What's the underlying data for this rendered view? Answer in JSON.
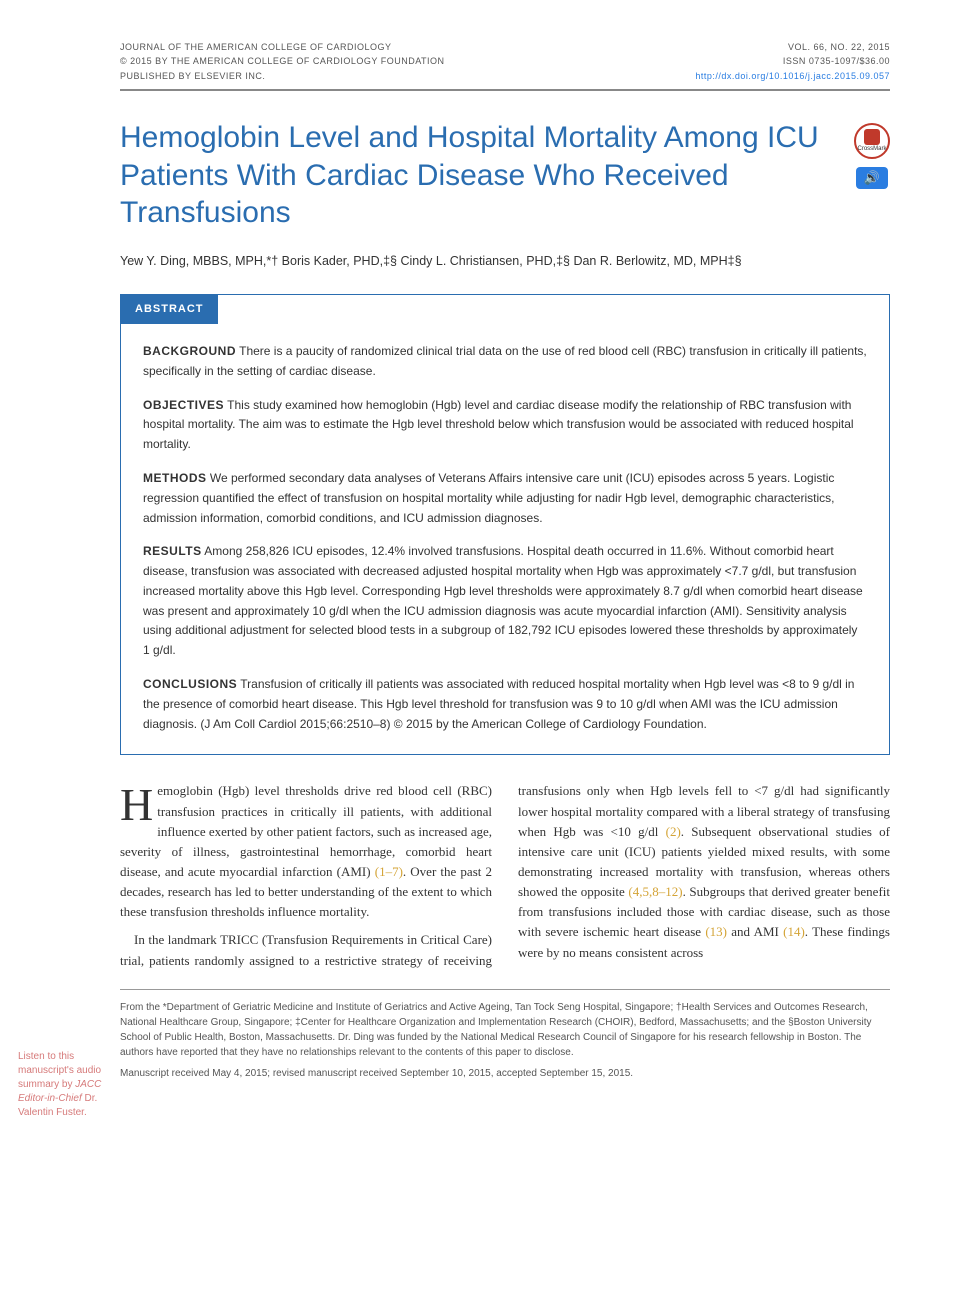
{
  "meta": {
    "journal_line": "JOURNAL OF THE AMERICAN COLLEGE OF CARDIOLOGY",
    "copyright_line": "© 2015 BY THE AMERICAN COLLEGE OF CARDIOLOGY FOUNDATION",
    "publisher_line": "PUBLISHED BY ELSEVIER INC.",
    "vol_line": "VOL. 66, NO. 22, 2015",
    "issn_line": "ISSN 0735-1097/$36.00",
    "doi": "http://dx.doi.org/10.1016/j.jacc.2015.09.057"
  },
  "title": "Hemoglobin Level and Hospital Mortality Among ICU Patients With Cardiac Disease Who Received Transfusions",
  "badges": {
    "crossmark_label": "CrossMark",
    "audio_glyph": "🔊"
  },
  "authors_html": "Yew Y. Ding, MBBS, MPH,*† Boris Kader, PHD,‡§ Cindy L. Christiansen, PHD,‡§ Dan R. Berlowitz, MD, MPH‡§",
  "abstract": {
    "heading": "ABSTRACT",
    "background_label": "BACKGROUND",
    "background": "There is a paucity of randomized clinical trial data on the use of red blood cell (RBC) transfusion in critically ill patients, specifically in the setting of cardiac disease.",
    "objectives_label": "OBJECTIVES",
    "objectives": "This study examined how hemoglobin (Hgb) level and cardiac disease modify the relationship of RBC transfusion with hospital mortality. The aim was to estimate the Hgb level threshold below which transfusion would be associated with reduced hospital mortality.",
    "methods_label": "METHODS",
    "methods": "We performed secondary data analyses of Veterans Affairs intensive care unit (ICU) episodes across 5 years. Logistic regression quantified the effect of transfusion on hospital mortality while adjusting for nadir Hgb level, demographic characteristics, admission information, comorbid conditions, and ICU admission diagnoses.",
    "results_label": "RESULTS",
    "results": "Among 258,826 ICU episodes, 12.4% involved transfusions. Hospital death occurred in 11.6%. Without comorbid heart disease, transfusion was associated with decreased adjusted hospital mortality when Hgb was approximately <7.7 g/dl, but transfusion increased mortality above this Hgb level. Corresponding Hgb level thresholds were approximately 8.7 g/dl when comorbid heart disease was present and approximately 10 g/dl when the ICU admission diagnosis was acute myocardial infarction (AMI). Sensitivity analysis using additional adjustment for selected blood tests in a subgroup of 182,792 ICU episodes lowered these thresholds by approximately 1 g/dl.",
    "conclusions_label": "CONCLUSIONS",
    "conclusions": "Transfusion of critically ill patients was associated with reduced hospital mortality when Hgb level was <8 to 9 g/dl in the presence of comorbid heart disease. This Hgb level threshold for transfusion was 9 to 10 g/dl when AMI was the ICU admission diagnosis. (J Am Coll Cardiol 2015;66:2510–8) © 2015 by the American College of Cardiology Foundation."
  },
  "body": {
    "p1_first": "H",
    "p1_rest": "emoglobin (Hgb) level thresholds drive red blood cell (RBC) transfusion practices in critically ill patients, with additional influence exerted by other patient factors, such as increased age, severity of illness, gastrointestinal hemorrhage, comorbid heart disease, and acute myocardial infarction (AMI) ",
    "p1_cite": "(1–7)",
    "p1_tail": ". Over the past 2 decades, research has led to better understanding of the extent to which these transfusion thresholds influence mortality.",
    "p2_head": "In the landmark TRICC (Transfusion Requirements in Critical Care) trial, patients randomly assigned to a ",
    "p2_cont": "restrictive strategy of receiving transfusions only when Hgb levels fell to <7 g/dl had significantly lower hospital mortality compared with a liberal strategy of transfusing when Hgb was <10 g/dl ",
    "p2_cite1": "(2)",
    "p2_mid": ". Subsequent observational studies of intensive care unit (ICU) patients yielded mixed results, with some demonstrating increased mortality with transfusion, whereas others showed the opposite ",
    "p2_cite2": "(4,5,8–12)",
    "p2_mid2": ". Subgroups that derived greater benefit from transfusions included those with cardiac disease, such as those with severe ischemic heart disease ",
    "p2_cite3": "(13)",
    "p2_mid3": " and AMI ",
    "p2_cite4": "(14)",
    "p2_tail": ". These findings were by no means consistent across"
  },
  "sidebar": {
    "line1": "Listen to this manuscript's audio summary by",
    "line2": "JACC Editor-in-Chief",
    "line3": "Dr. Valentin Fuster."
  },
  "footnotes": {
    "affiliations": "From the *Department of Geriatric Medicine and Institute of Geriatrics and Active Ageing, Tan Tock Seng Hospital, Singapore; †Health Services and Outcomes Research, National Healthcare Group, Singapore; ‡Center for Healthcare Organization and Implementation Research (CHOIR), Bedford, Massachusetts; and the §Boston University School of Public Health, Boston, Massachusetts. Dr. Ding was funded by the National Medical Research Council of Singapore for his research fellowship in Boston. The authors have reported that they have no relationships relevant to the contents of this paper to disclose.",
    "dates": "Manuscript received May 4, 2015; revised manuscript received September 10, 2015, accepted September 15, 2015."
  },
  "colors": {
    "title": "#2a6db0",
    "link": "#2a7de1",
    "cite": "#d4a437",
    "sidebar": "#d67a7a"
  }
}
